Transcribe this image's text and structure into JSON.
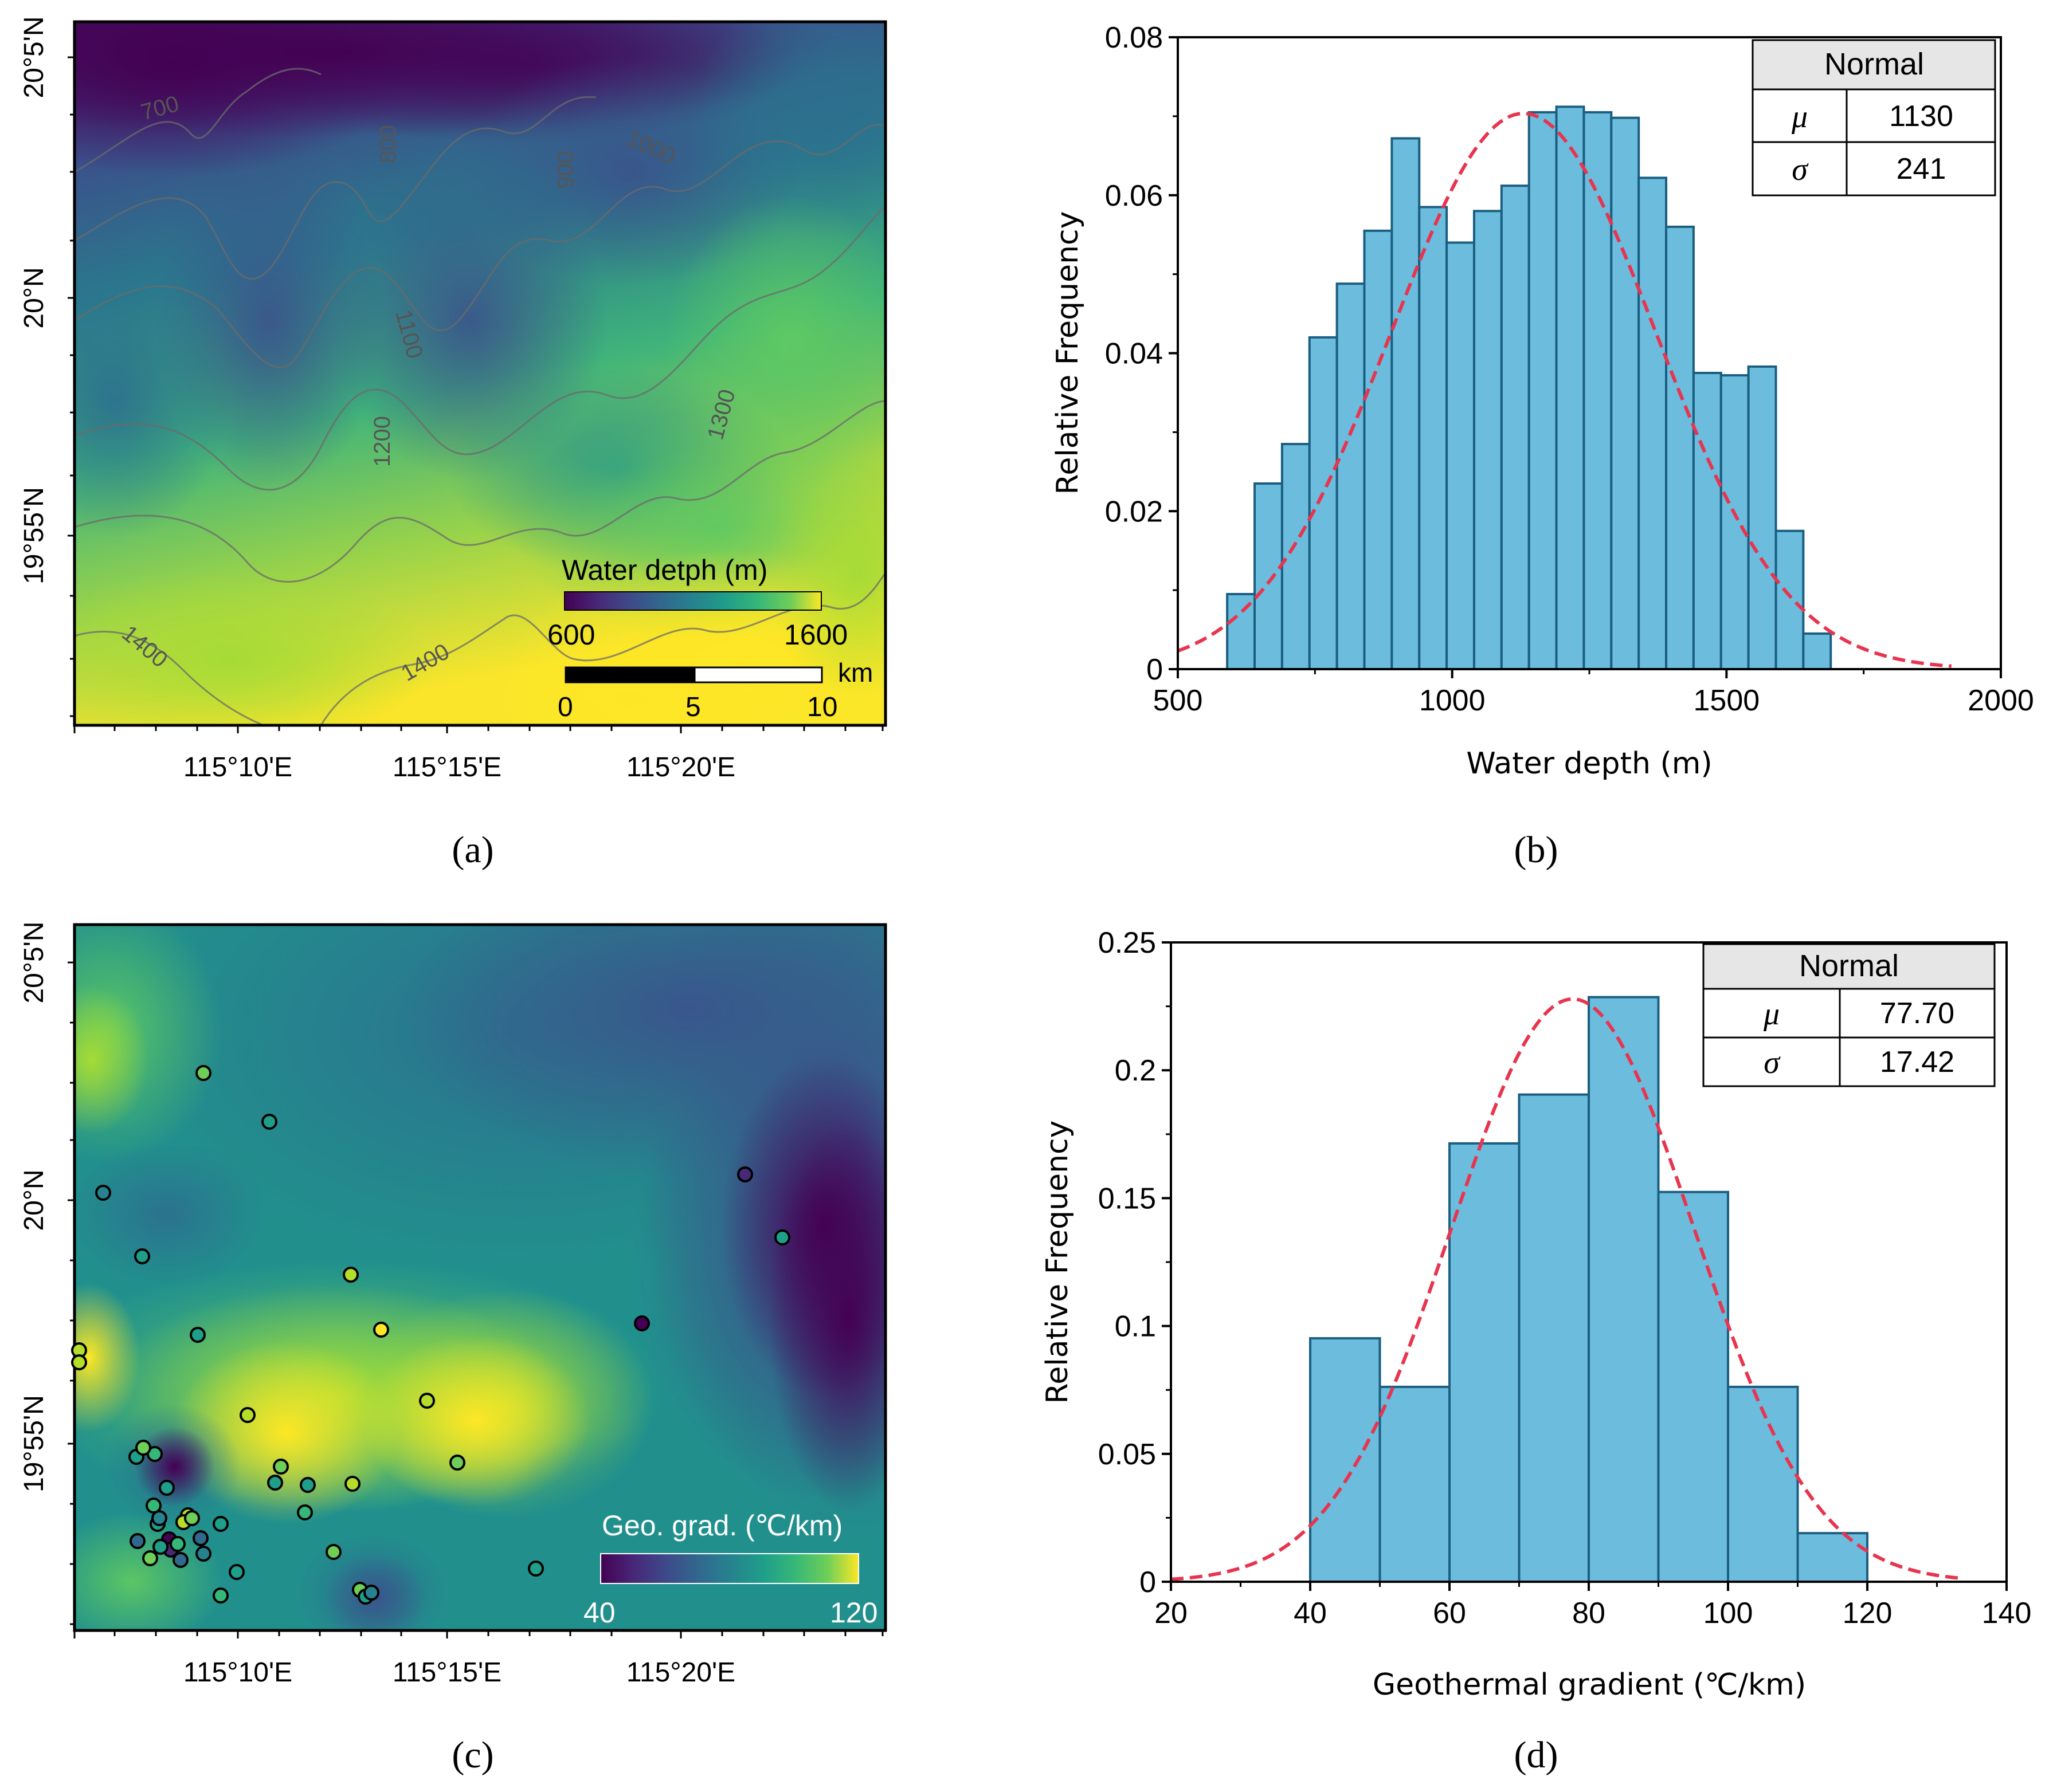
{
  "panels": {
    "a": "(a)",
    "b": "(b)",
    "c": "(c)",
    "d": "(d)"
  },
  "maps": {
    "lon_labels": [
      "115°10'E",
      "115°15'E",
      "115°20'E"
    ],
    "lat_labels": [
      "20°5'N",
      "20°N",
      "19°55'N"
    ],
    "a": {
      "colorbar_title": "Water detph (m)",
      "colorbar_min": "600",
      "colorbar_max": "1600",
      "scale_unit": "km",
      "scale_ticks": [
        "0",
        "5",
        "10"
      ],
      "contours": [
        {
          "label": "700"
        },
        {
          "label": "800"
        },
        {
          "label": "900"
        },
        {
          "label": "1000"
        },
        {
          "label": "1100"
        },
        {
          "label": "1200"
        },
        {
          "label": "1300"
        },
        {
          "label": "1400"
        },
        {
          "label": "1400"
        }
      ]
    },
    "c": {
      "colorbar_title": "Geo. grad. (℃/km)",
      "colorbar_min": "40",
      "colorbar_max": "120",
      "wells": [
        {
          "v": 0.8
        },
        {
          "v": 0.55
        },
        {
          "v": 0.45
        },
        {
          "v": 0.5
        },
        {
          "v": 0.52
        },
        {
          "v": 0.85
        },
        {
          "v": 0.88
        },
        {
          "v": 0.9
        },
        {
          "v": 0.8
        },
        {
          "v": 0.6
        },
        {
          "v": 0.55
        },
        {
          "v": 0.9
        },
        {
          "v": 0.85
        },
        {
          "v": 0.95
        },
        {
          "v": 0.92
        },
        {
          "v": 0.75
        },
        {
          "v": 0.7
        },
        {
          "v": 0.8
        },
        {
          "v": 0.05
        },
        {
          "v": 0.12
        },
        {
          "v": 0.5
        },
        {
          "v": 0.6
        },
        {
          "v": 0.7
        },
        {
          "v": 0.75
        },
        {
          "v": 0.55
        },
        {
          "v": 0.65
        },
        {
          "v": 0.5
        },
        {
          "v": 0.35
        },
        {
          "v": 0.9
        },
        {
          "v": 0.4
        },
        {
          "v": 0.05
        },
        {
          "v": 0.08
        },
        {
          "v": 0.85
        },
        {
          "v": 0.75
        },
        {
          "v": 0.8
        },
        {
          "v": 0.55
        },
        {
          "v": 0.7
        },
        {
          "v": 0.35
        },
        {
          "v": 0.3
        },
        {
          "v": 0.4
        },
        {
          "v": 0.6
        },
        {
          "v": 0.5
        },
        {
          "v": 0.7
        }
      ]
    }
  },
  "chart_data": [
    {
      "type": "bar",
      "panel": "b",
      "xlabel": "Water depth (m)",
      "ylabel": "Relative Frequency",
      "xlim": [
        500,
        2000
      ],
      "ylim": [
        0,
        0.08
      ],
      "xticks": [
        500,
        1000,
        1500,
        2000
      ],
      "yticks": [
        "0",
        "0.02",
        "0.04",
        "0.06",
        "0.08"
      ],
      "bin_start": 590,
      "bin_width": 50,
      "values": [
        0.0095,
        0.0235,
        0.0285,
        0.042,
        0.0488,
        0.0555,
        0.0672,
        0.0585,
        0.054,
        0.058,
        0.0612,
        0.0705,
        0.0712,
        0.0705,
        0.0698,
        0.0622,
        0.056,
        0.0375,
        0.0372,
        0.0383,
        0.0175,
        0.0045
      ],
      "fit": {
        "type": "normal",
        "mu": 1130,
        "sigma": 241,
        "scale": 0.0535,
        "x_range": [
          500,
          1910
        ]
      },
      "table": {
        "header": "Normal",
        "rows": [
          {
            "sym": "μ",
            "val": "1130"
          },
          {
            "sym": "σ",
            "val": "241"
          }
        ]
      }
    },
    {
      "type": "bar",
      "panel": "d",
      "xlabel": "Geothermal gradient (℃/km)",
      "ylabel": "Relative Frequency",
      "xlim": [
        20,
        140
      ],
      "ylim": [
        0,
        0.25
      ],
      "xticks": [
        20,
        40,
        60,
        80,
        100,
        120,
        140
      ],
      "yticks": [
        "0",
        "0.05",
        "0.1",
        "0.15",
        "0.2",
        "0.25"
      ],
      "bin_start": 40,
      "bin_width": 10,
      "values": [
        0.0952,
        0.0762,
        0.1714,
        0.1905,
        0.2286,
        0.1524,
        0.0762,
        0.019
      ],
      "fit": {
        "type": "normal",
        "mu": 77.7,
        "sigma": 17.42,
        "scale": 9.9,
        "x_range": [
          20,
          133
        ]
      },
      "table": {
        "header": "Normal",
        "rows": [
          {
            "sym": "μ",
            "val": "77.70"
          },
          {
            "sym": "σ",
            "val": "17.42"
          }
        ]
      }
    }
  ]
}
